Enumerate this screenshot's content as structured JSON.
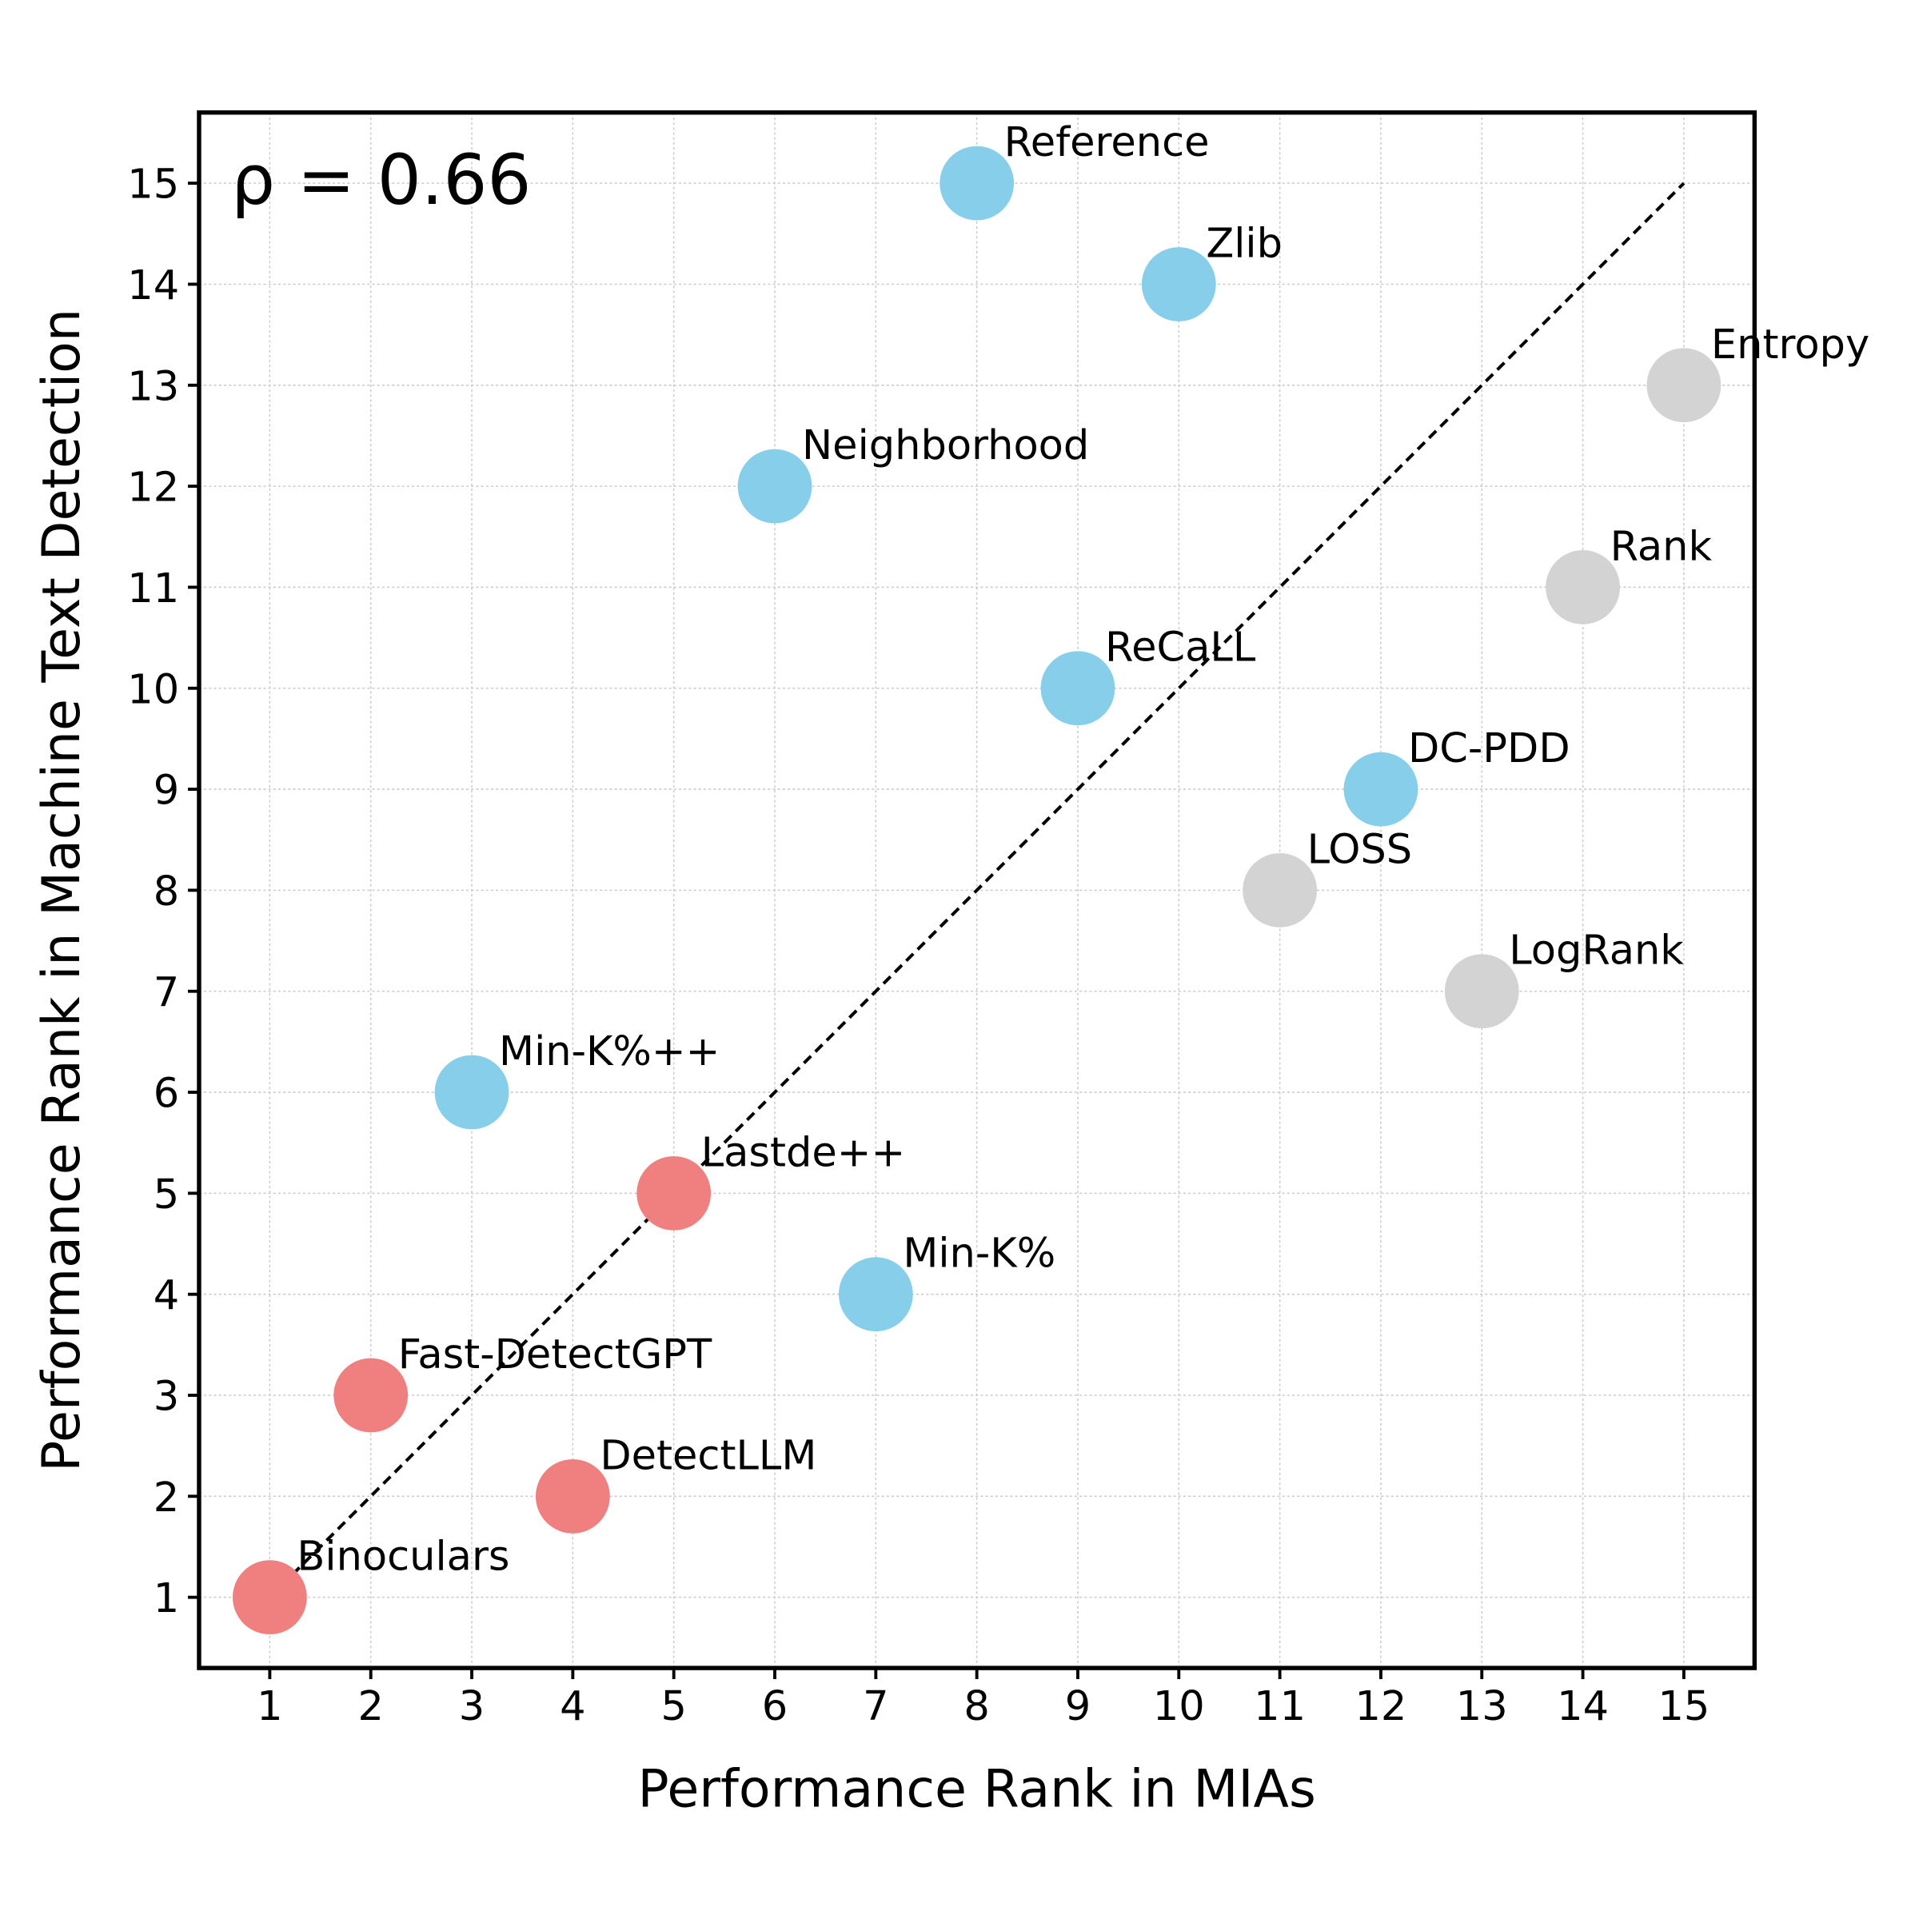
{
  "chart_data": {
    "type": "scatter",
    "title": "",
    "xlabel": "Performance Rank in MIAs",
    "ylabel": "Performance Rank in Machine Text Detection",
    "xlim": [
      0.3,
      15.7
    ],
    "ylim": [
      0.3,
      15.7
    ],
    "xticks": [
      1,
      2,
      3,
      4,
      5,
      6,
      7,
      8,
      9,
      10,
      11,
      12,
      13,
      14,
      15
    ],
    "yticks": [
      1,
      2,
      3,
      4,
      5,
      6,
      7,
      8,
      9,
      10,
      11,
      12,
      13,
      14,
      15
    ],
    "grid": true,
    "annotation": "ρ = 0.66",
    "diagonal": {
      "from": [
        1,
        1
      ],
      "to": [
        15,
        15
      ],
      "style": "dashed"
    },
    "colors": {
      "blue": "#87CEEB",
      "red": "#F08080",
      "gray": "#D3D3D3"
    },
    "points": [
      {
        "label": "Reference",
        "x": 8,
        "y": 15,
        "color": "blue"
      },
      {
        "label": "Zlib",
        "x": 10,
        "y": 14,
        "color": "blue"
      },
      {
        "label": "Entropy",
        "x": 15,
        "y": 13,
        "color": "gray"
      },
      {
        "label": "Neighborhood",
        "x": 6,
        "y": 12,
        "color": "blue"
      },
      {
        "label": "Rank",
        "x": 14,
        "y": 11,
        "color": "gray"
      },
      {
        "label": "ReCaLL",
        "x": 9,
        "y": 10,
        "color": "blue"
      },
      {
        "label": "DC-PDD",
        "x": 12,
        "y": 9,
        "color": "blue"
      },
      {
        "label": "LOSS",
        "x": 11,
        "y": 8,
        "color": "gray"
      },
      {
        "label": "LogRank",
        "x": 13,
        "y": 7,
        "color": "gray"
      },
      {
        "label": "Min-K%++",
        "x": 3,
        "y": 6,
        "color": "blue"
      },
      {
        "label": "Lastde++",
        "x": 5,
        "y": 5,
        "color": "red"
      },
      {
        "label": "Min-K%",
        "x": 7,
        "y": 4,
        "color": "blue"
      },
      {
        "label": "Fast-DetectGPT",
        "x": 2,
        "y": 3,
        "color": "red"
      },
      {
        "label": "DetectLLM",
        "x": 4,
        "y": 2,
        "color": "red"
      },
      {
        "label": "Binoculars",
        "x": 1,
        "y": 1,
        "color": "red"
      }
    ]
  }
}
